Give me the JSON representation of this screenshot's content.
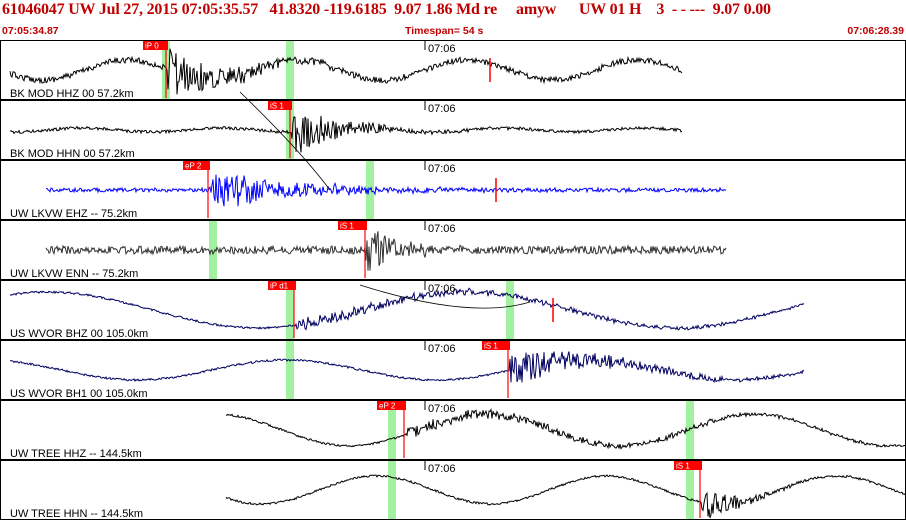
{
  "header": {
    "title": "61046047 UW Jul 27, 2015 07:05:35.57   41.8320 -119.6185  9.07 1.86 Md re     amyw      UW 01 H    3  - - ---  9.07 0.00",
    "start_time": "07:05:34.87",
    "timespan": "Timespan=  54 s",
    "end_time": "07:06:28.39"
  },
  "panels": [
    {
      "label": "BK MOD HHZ 00 57.2km",
      "time_label": "07:06",
      "pick": "iP 0",
      "color": "#000000"
    },
    {
      "label": "BK MOD HHN 00 57.2km",
      "time_label": "07:06",
      "pick": "iS 1",
      "color": "#000000"
    },
    {
      "label": "UW LKVW EHZ -- 75.2km",
      "time_label": "07:06",
      "pick": "eP 2",
      "color": "#0000ff"
    },
    {
      "label": "UW LKVW ENN -- 75.2km",
      "time_label": "07:06",
      "pick": "iS 1",
      "color": "#303030"
    },
    {
      "label": "US WVOR BHZ 00 105.0km",
      "time_label": "07:06",
      "pick": "iP d1",
      "color": "#000060"
    },
    {
      "label": "US WVOR BH1 00 105.0km",
      "time_label": "07:06",
      "pick": "iS 1",
      "color": "#000060"
    },
    {
      "label": "UW TREE HHZ -- 144.5km",
      "time_label": "07:06",
      "pick": "eP 2",
      "color": "#000000"
    },
    {
      "label": "UW TREE HHN -- 144.5km",
      "time_label": "07:06",
      "pick": "iS 1",
      "color": "#000000"
    }
  ],
  "colors": {
    "header_text": "#c00000",
    "pick_flag": "#ff0000",
    "theoretical_arrival": "#90ee90"
  }
}
